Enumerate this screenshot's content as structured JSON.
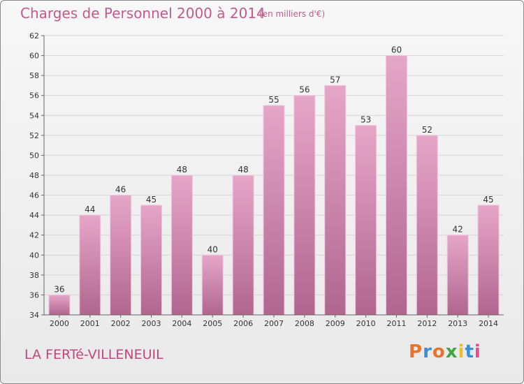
{
  "chart_data": {
    "type": "bar",
    "title": "Charges de Personnel 2000 à 2014",
    "subtitle": "(en milliers d'€)",
    "categories": [
      "2000",
      "2001",
      "2002",
      "2003",
      "2004",
      "2005",
      "2006",
      "2007",
      "2008",
      "2009",
      "2010",
      "2011",
      "2012",
      "2013",
      "2014"
    ],
    "values": [
      36,
      44,
      46,
      45,
      48,
      40,
      48,
      55,
      56,
      57,
      53,
      60,
      52,
      42,
      45
    ],
    "ylim": [
      34,
      62
    ],
    "yticks": [
      34,
      36,
      38,
      40,
      42,
      44,
      46,
      48,
      50,
      52,
      54,
      56,
      58,
      60,
      62
    ],
    "grid": true,
    "bar_color": "#d98ab4"
  },
  "footer": {
    "place": "LA FERTé-VILLENEUIL",
    "logo": "Proxiti"
  }
}
